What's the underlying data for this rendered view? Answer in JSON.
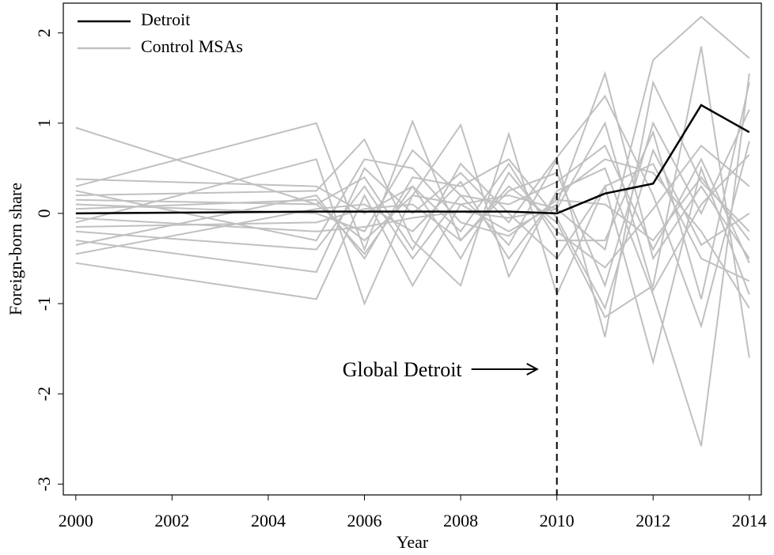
{
  "chart_data": {
    "type": "line",
    "x_label": "Year",
    "y_label": "Foreign-born share",
    "x": [
      2000,
      2005,
      2006,
      2007,
      2008,
      2009,
      2010,
      2011,
      2012,
      2013,
      2014
    ],
    "xlim": [
      1999.74,
      2014.25
    ],
    "ylim": [
      -3.12,
      2.33
    ],
    "xticks": [
      2000,
      2002,
      2004,
      2006,
      2008,
      2010,
      2012,
      2014
    ],
    "yticks": [
      -3,
      -2,
      -1,
      0,
      1,
      2
    ],
    "legend": "upper left",
    "vline": 2010,
    "annotation": "Global Detroit",
    "series": [
      {
        "name": "Detroit",
        "color": "#000000",
        "values": [
          0,
          0.02,
          0.02,
          0.02,
          0.02,
          0.02,
          0,
          0.22,
          0.33,
          1.2,
          0.9
        ]
      },
      {
        "name": "Control MSAs",
        "color": "#c0c0c0",
        "lines": [
          [
            0.95,
            0.1,
            -0.3,
            0.2,
            0.1,
            -0.2,
            0.1,
            1.55,
            -0.5,
            0.3,
            -0.5
          ],
          [
            -0.55,
            -0.95,
            0.2,
            -0.8,
            0.1,
            0.2,
            0.05,
            -0.4,
            1.7,
            2.18,
            1.72
          ],
          [
            0.3,
            1.0,
            -0.4,
            1.02,
            -0.3,
            0.3,
            -0.1,
            -1.15,
            -0.8,
            1.85,
            -1.6
          ],
          [
            -0.1,
            0.6,
            -1.0,
            0.2,
            0.98,
            -0.7,
            0.25,
            0.5,
            -0.9,
            -2.58,
            1.55
          ],
          [
            0.2,
            0.25,
            0.82,
            -0.3,
            -0.8,
            0.88,
            -0.9,
            0.3,
            -1.65,
            0.5,
            -0.9
          ],
          [
            -0.3,
            -0.65,
            0.5,
            0.0,
            0.45,
            -0.1,
            0.62,
            1.3,
            0.2,
            -1.25,
            0.8
          ],
          [
            0.1,
            0.0,
            -0.2,
            0.7,
            0.2,
            -0.35,
            0.6,
            -1.37,
            1.45,
            0.35,
            -0.2
          ],
          [
            -0.2,
            -0.4,
            0.3,
            -0.5,
            0.2,
            0.1,
            0.35,
            0.75,
            -0.4,
            0.6,
            -0.55
          ],
          [
            0.05,
            0.15,
            -0.45,
            0.3,
            -0.2,
            0.55,
            -0.3,
            -0.3,
            0.9,
            -0.95,
            1.45
          ],
          [
            -0.45,
            0.05,
            0.1,
            -0.2,
            0.35,
            -0.5,
            0.2,
            0.6,
            0.45,
            -0.2,
            -1.05
          ],
          [
            0.38,
            0.3,
            0.0,
            0.3,
            -0.5,
            0.45,
            -0.2,
            -0.6,
            0.05,
            0.75,
            0.3
          ],
          [
            -0.05,
            -0.2,
            -0.15,
            -0.05,
            0.02,
            -0.05,
            0.05,
            1.0,
            -0.85,
            0.1,
            0.65
          ],
          [
            0.15,
            0.1,
            0.4,
            -0.4,
            0.55,
            0.0,
            -0.5,
            0.3,
            0.55,
            -0.5,
            -0.75
          ],
          [
            -0.15,
            -0.1,
            0.05,
            0.1,
            -0.3,
            0.25,
            0.45,
            -0.8,
            1.0,
            0.0,
            1.15
          ],
          [
            0.25,
            -0.3,
            0.6,
            0.5,
            -0.1,
            -0.25,
            0.15,
            0.1,
            -0.3,
            0.4,
            -0.3
          ],
          [
            -0.35,
            0.2,
            -0.5,
            0.4,
            0.3,
            0.6,
            -0.05,
            -1.05,
            0.7,
            -0.35,
            0.0
          ]
        ]
      }
    ]
  }
}
